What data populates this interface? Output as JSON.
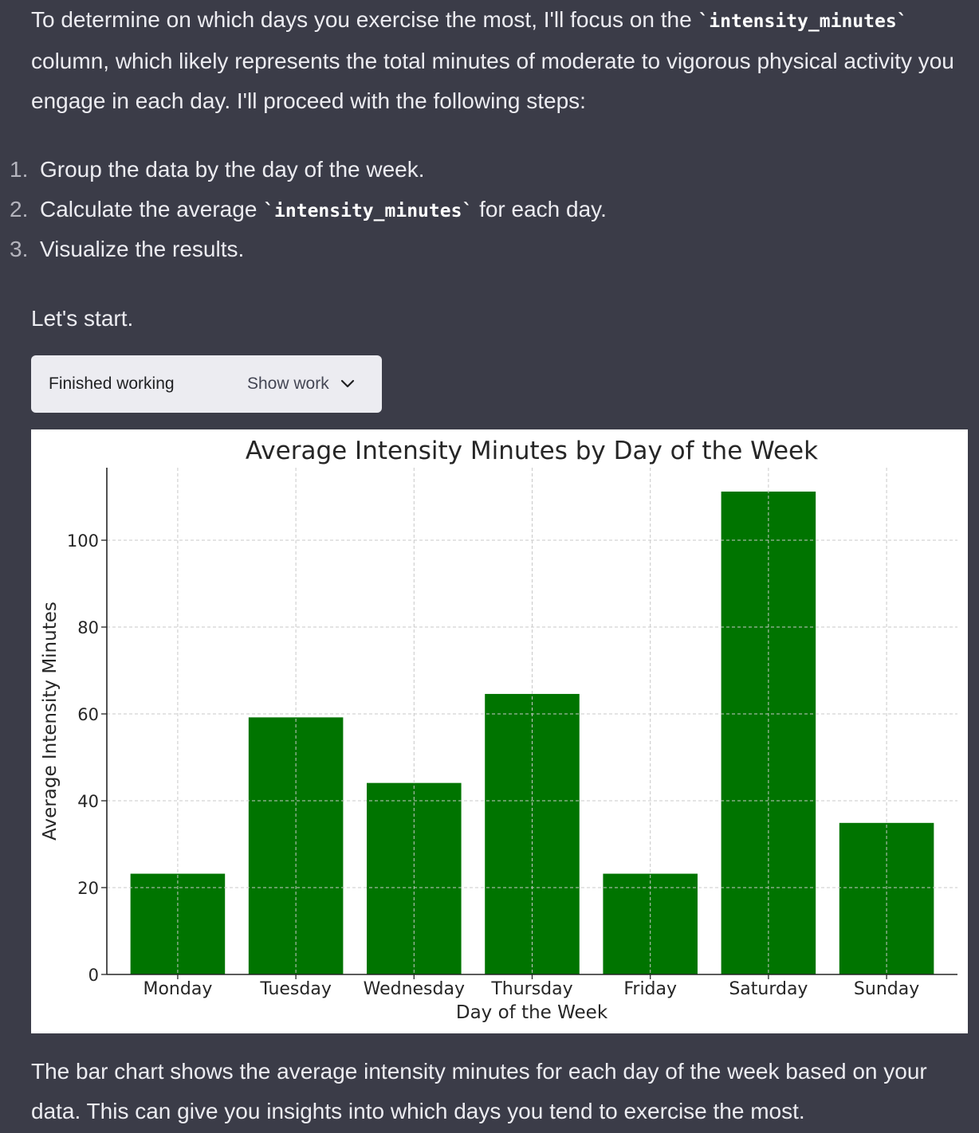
{
  "intro": {
    "part1": "To determine on which days you exercise the most, I'll focus on the ",
    "code": "`intensity_minutes`",
    "part2": " column, which likely represents the total minutes of moderate to vigorous physical activity you engage in each day. I'll proceed with the following steps:"
  },
  "steps": [
    {
      "num": "1.",
      "before": "Group the data by the day of the week.",
      "code": "",
      "after": ""
    },
    {
      "num": "2.",
      "before": "Calculate the average ",
      "code": "`intensity_minutes`",
      "after": " for each day."
    },
    {
      "num": "3.",
      "before": "Visualize the results.",
      "code": "",
      "after": ""
    }
  ],
  "start_text": "Let's start.",
  "work_box": {
    "status": "Finished working",
    "show_label": "Show work",
    "icon": "chevron-down-icon"
  },
  "chart_data": {
    "type": "bar",
    "title": "Average Intensity Minutes by Day of the Week",
    "xlabel": "Day of the Week",
    "ylabel": "Average Intensity Minutes",
    "categories": [
      "Monday",
      "Tuesday",
      "Wednesday",
      "Thursday",
      "Friday",
      "Saturday",
      "Sunday"
    ],
    "values": [
      23.2,
      59.2,
      44.1,
      64.6,
      23.2,
      111.2,
      34.9
    ],
    "yticks": [
      0,
      20,
      40,
      60,
      80,
      100
    ],
    "ylim": [
      0,
      116.7
    ],
    "grid": true,
    "bar_color": "#007400"
  },
  "outro": "The bar chart shows the average intensity minutes for each day of the week based on your data. This can give you insights into which days you tend to exercise the most."
}
